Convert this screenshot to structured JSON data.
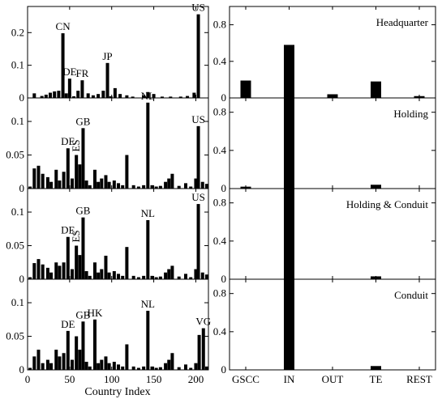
{
  "left_panels": {
    "xlabel": "Country Index",
    "xlim": [
      0,
      215
    ],
    "xticks": [
      0,
      50,
      100,
      150,
      200
    ]
  },
  "chart_data": [
    {
      "type": "bar",
      "panel": "left-1",
      "ylim": [
        0,
        0.28
      ],
      "yticks": [
        "0",
        "0.1",
        "0.2"
      ],
      "ytick_values": [
        0,
        0.1,
        0.2
      ],
      "x": [
        8,
        17,
        22,
        27,
        32,
        37,
        42,
        46,
        50,
        55,
        60,
        65,
        72,
        78,
        84,
        90,
        95,
        99,
        104,
        110,
        118,
        125,
        138,
        143,
        150,
        160,
        170,
        182,
        190,
        198,
        203
      ],
      "values": [
        0.014,
        0.006,
        0.01,
        0.016,
        0.02,
        0.022,
        0.198,
        0.014,
        0.059,
        0.005,
        0.022,
        0.054,
        0.014,
        0.008,
        0.012,
        0.022,
        0.107,
        0.005,
        0.03,
        0.012,
        0.008,
        0.004,
        0.008,
        0.018,
        0.012,
        0.004,
        0.004,
        0.004,
        0.006,
        0.016,
        0.256
      ],
      "annotations": [
        {
          "label": "CN",
          "x": 42,
          "y": 0.198
        },
        {
          "label": "DE",
          "x": 50,
          "y": 0.059
        },
        {
          "label": "FR",
          "x": 65,
          "y": 0.054
        },
        {
          "label": "JP",
          "x": 95,
          "y": 0.107
        },
        {
          "label": "US",
          "x": 203,
          "y": 0.256
        }
      ]
    },
    {
      "type": "bar",
      "panel": "left-2",
      "ylim": [
        0,
        0.135
      ],
      "yticks": [
        "0",
        "0.05",
        "0.1"
      ],
      "ytick_values": [
        0,
        0.05,
        0.1
      ],
      "x": [
        3,
        8,
        13,
        18,
        24,
        28,
        34,
        38,
        43,
        48,
        53,
        58,
        62,
        66,
        70,
        74,
        80,
        84,
        88,
        93,
        97,
        103,
        108,
        113,
        118,
        126,
        132,
        138,
        143,
        148,
        153,
        158,
        164,
        168,
        172,
        180,
        188,
        194,
        200,
        203,
        208,
        213
      ],
      "values": [
        0.003,
        0.03,
        0.034,
        0.022,
        0.017,
        0.01,
        0.028,
        0.012,
        0.025,
        0.06,
        0.015,
        0.05,
        0.036,
        0.09,
        0.012,
        0.005,
        0.028,
        0.01,
        0.015,
        0.02,
        0.01,
        0.012,
        0.008,
        0.005,
        0.05,
        0.005,
        0.003,
        0.005,
        0.128,
        0.005,
        0.003,
        0.004,
        0.01,
        0.015,
        0.022,
        0.004,
        0.008,
        0.003,
        0.015,
        0.093,
        0.01,
        0.007
      ],
      "annotations": [
        {
          "label": "DE",
          "x": 48,
          "y": 0.06
        },
        {
          "label": "ES",
          "x": 58,
          "y": 0.05
        },
        {
          "label": "GB",
          "x": 66,
          "y": 0.09
        },
        {
          "label": "NL",
          "x": 143,
          "y": 0.128
        },
        {
          "label": "US",
          "x": 203,
          "y": 0.093
        }
      ]
    },
    {
      "type": "bar",
      "panel": "left-3",
      "ylim": [
        0,
        0.135
      ],
      "yticks": [
        "0",
        "0.05",
        "0.1"
      ],
      "ytick_values": [
        0,
        0.05,
        0.1
      ],
      "x": [
        3,
        8,
        13,
        18,
        24,
        28,
        34,
        38,
        43,
        48,
        53,
        58,
        62,
        66,
        70,
        74,
        80,
        84,
        88,
        93,
        97,
        103,
        108,
        113,
        118,
        126,
        132,
        138,
        143,
        148,
        153,
        158,
        164,
        168,
        172,
        180,
        188,
        194,
        200,
        203,
        208,
        213
      ],
      "values": [
        0.003,
        0.024,
        0.03,
        0.022,
        0.017,
        0.01,
        0.025,
        0.02,
        0.025,
        0.063,
        0.015,
        0.05,
        0.036,
        0.092,
        0.012,
        0.005,
        0.025,
        0.01,
        0.015,
        0.035,
        0.01,
        0.012,
        0.008,
        0.005,
        0.048,
        0.005,
        0.003,
        0.005,
        0.088,
        0.005,
        0.003,
        0.004,
        0.01,
        0.015,
        0.02,
        0.004,
        0.008,
        0.003,
        0.015,
        0.112,
        0.01,
        0.007
      ],
      "annotations": [
        {
          "label": "DE",
          "x": 48,
          "y": 0.063
        },
        {
          "label": "ES",
          "x": 58,
          "y": 0.05
        },
        {
          "label": "GB",
          "x": 66,
          "y": 0.092
        },
        {
          "label": "NL",
          "x": 143,
          "y": 0.088
        },
        {
          "label": "US",
          "x": 203,
          "y": 0.112
        }
      ]
    },
    {
      "type": "bar",
      "panel": "left-4",
      "ylim": [
        0,
        0.135
      ],
      "yticks": [
        "0",
        "0.05",
        "0.1"
      ],
      "ytick_values": [
        0,
        0.05,
        0.1
      ],
      "x": [
        3,
        8,
        13,
        18,
        24,
        28,
        34,
        38,
        43,
        48,
        53,
        58,
        62,
        66,
        70,
        74,
        80,
        84,
        88,
        93,
        97,
        103,
        108,
        113,
        118,
        126,
        132,
        138,
        143,
        148,
        153,
        158,
        164,
        168,
        172,
        180,
        188,
        194,
        200,
        204,
        209,
        213
      ],
      "values": [
        0.003,
        0.02,
        0.03,
        0.01,
        0.015,
        0.01,
        0.03,
        0.02,
        0.025,
        0.058,
        0.015,
        0.05,
        0.03,
        0.072,
        0.012,
        0.005,
        0.075,
        0.01,
        0.015,
        0.02,
        0.01,
        0.012,
        0.008,
        0.005,
        0.038,
        0.005,
        0.003,
        0.005,
        0.088,
        0.005,
        0.003,
        0.004,
        0.01,
        0.015,
        0.025,
        0.004,
        0.008,
        0.003,
        0.01,
        0.052,
        0.062,
        0.005
      ],
      "annotations": [
        {
          "label": "DE",
          "x": 48,
          "y": 0.058
        },
        {
          "label": "GB",
          "x": 66,
          "y": 0.072
        },
        {
          "label": "HK",
          "x": 80,
          "y": 0.075
        },
        {
          "label": "NL",
          "x": 143,
          "y": 0.088
        },
        {
          "label": "VG",
          "x": 209,
          "y": 0.062
        }
      ]
    },
    {
      "type": "bar",
      "panel": "right-1",
      "title": "Headquarter",
      "categories": [
        "GSCC",
        "IN",
        "OUT",
        "TE",
        "REST"
      ],
      "values": [
        0.19,
        0.58,
        0.04,
        0.18,
        0.02
      ],
      "ylim": [
        0,
        1.0
      ],
      "yticks": [
        "0",
        "0.4",
        "0.8"
      ],
      "ytick_values": [
        0,
        0.4,
        0.8
      ]
    },
    {
      "type": "bar",
      "panel": "right-2",
      "title": "Holding",
      "categories": [
        "GSCC",
        "IN",
        "OUT",
        "TE",
        "REST"
      ],
      "values": [
        0.02,
        0.95,
        0.0,
        0.04,
        0.0
      ],
      "ylim": [
        0,
        0.95
      ],
      "yticks": [
        "0",
        "0.4",
        "0.8"
      ],
      "ytick_values": [
        0,
        0.4,
        0.8
      ]
    },
    {
      "type": "bar",
      "panel": "right-3",
      "title": "Holding & Conduit",
      "categories": [
        "GSCC",
        "IN",
        "OUT",
        "TE",
        "REST"
      ],
      "values": [
        0.0,
        0.95,
        0.0,
        0.03,
        0.0
      ],
      "ylim": [
        0,
        0.95
      ],
      "yticks": [
        "0",
        "0.4",
        "0.8"
      ],
      "ytick_values": [
        0,
        0.4,
        0.8
      ]
    },
    {
      "type": "bar",
      "panel": "right-4",
      "title": "Conduit",
      "categories": [
        "GSCC",
        "IN",
        "OUT",
        "TE",
        "REST"
      ],
      "values": [
        0.0,
        0.95,
        0.0,
        0.04,
        0.0
      ],
      "ylim": [
        0,
        0.95
      ],
      "yticks": [
        "0",
        "0.4",
        "0.8"
      ],
      "ytick_values": [
        0,
        0.4,
        0.8
      ]
    }
  ]
}
